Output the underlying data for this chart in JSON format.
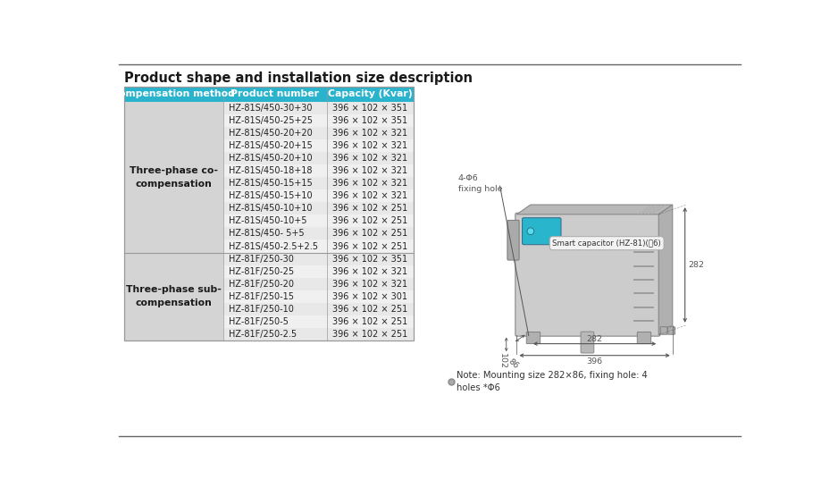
{
  "title": "Product shape and installation size description",
  "title_fontsize": 10.5,
  "title_fontweight": "bold",
  "bg_color": "#ffffff",
  "header_bg": "#2ab3cc",
  "header_text_color": "#ffffff",
  "col1_bg": "#d4d4d4",
  "row_bg_odd": "#e8e8e8",
  "row_bg_even": "#f0f0f0",
  "header_labels": [
    "Compensation method",
    "Product number",
    "Capacity (Kvar)"
  ],
  "section1_label": "Three-phase co-\ncompensation",
  "section1_rows": [
    [
      "HZ-81S/450-30+30",
      "396 × 102 × 351"
    ],
    [
      "HZ-81S/450-25+25",
      "396 × 102 × 351"
    ],
    [
      "HZ-81S/450-20+20",
      "396 × 102 × 321"
    ],
    [
      "HZ-81S/450-20+15",
      "396 × 102 × 321"
    ],
    [
      "HZ-81S/450-20+10",
      "396 × 102 × 321"
    ],
    [
      "HZ-81S/450-18+18",
      "396 × 102 × 321"
    ],
    [
      "HZ-81S/450-15+15",
      "396 × 102 × 321"
    ],
    [
      "HZ-81S/450-15+10",
      "396 × 102 × 321"
    ],
    [
      "HZ-81S/450-10+10",
      "396 × 102 × 251"
    ],
    [
      "HZ-81S/450-10+5",
      "396 × 102 × 251"
    ],
    [
      "HZ-81S/450- 5+5",
      "396 × 102 × 251"
    ],
    [
      "HZ-81S/450-2.5+2.5",
      "396 × 102 × 251"
    ]
  ],
  "section2_label": "Three-phase sub-\ncompensation",
  "section2_rows": [
    [
      "HZ-81F/250-30",
      "396 × 102 × 351"
    ],
    [
      "HZ-81F/250-25",
      "396 × 102 × 321"
    ],
    [
      "HZ-81F/250-20",
      "396 × 102 × 321"
    ],
    [
      "HZ-81F/250-15",
      "396 × 102 × 301"
    ],
    [
      "HZ-81F/250-10",
      "396 × 102 × 251"
    ],
    [
      "HZ-81F/250-5",
      "396 × 102 × 251"
    ],
    [
      "HZ-81F/250-2.5",
      "396 × 102 × 251"
    ]
  ],
  "note_bullet": "●",
  "note_text": "Note: Mounting size 282×86, fixing hole: 4\nholes *Φ6",
  "smart_cap_label": "Smart capacitor (HZ-81)(图6)",
  "fix_hole_label": "4-Φ6\nfixing hole",
  "dim_282": "282",
  "dim_396": "396",
  "dim_86": "86",
  "dim_102": "102",
  "top_border_color": "#666666",
  "bottom_border_color": "#666666"
}
